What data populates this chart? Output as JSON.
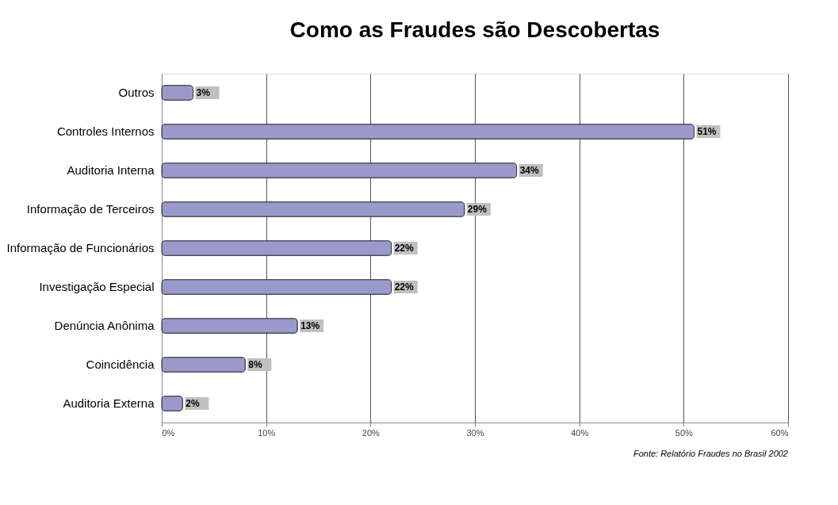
{
  "chart_data": {
    "type": "bar",
    "orientation": "horizontal",
    "title": "Como as Fraudes são Descobertas",
    "categories": [
      "Outros",
      "Controles Internos",
      "Auditoria Interna",
      "Informação de Terceiros",
      "Informação de Funcionários",
      "Investigação Especial",
      "Denúncia Anônima",
      "Coincidência",
      "Auditoria Externa"
    ],
    "values": [
      3,
      51,
      34,
      29,
      22,
      22,
      13,
      8,
      2
    ],
    "value_labels": [
      "3%",
      "51%",
      "34%",
      "29%",
      "22%",
      "22%",
      "13%",
      "8%",
      "2%"
    ],
    "color": "#9999cc",
    "xlim": [
      0,
      60
    ],
    "xticks": [
      {
        "value": 0,
        "label": "0%"
      },
      {
        "value": 10,
        "label": "10%"
      },
      {
        "value": 20,
        "label": "20%"
      },
      {
        "value": 30,
        "label": "30%"
      },
      {
        "value": 40,
        "label": "40%"
      },
      {
        "value": 50,
        "label": "50%"
      },
      {
        "value": 60,
        "label": "60%"
      }
    ],
    "grid": "x",
    "annotations": [
      "Fonte: Relatório Fraudes no Brasil 2002"
    ]
  }
}
